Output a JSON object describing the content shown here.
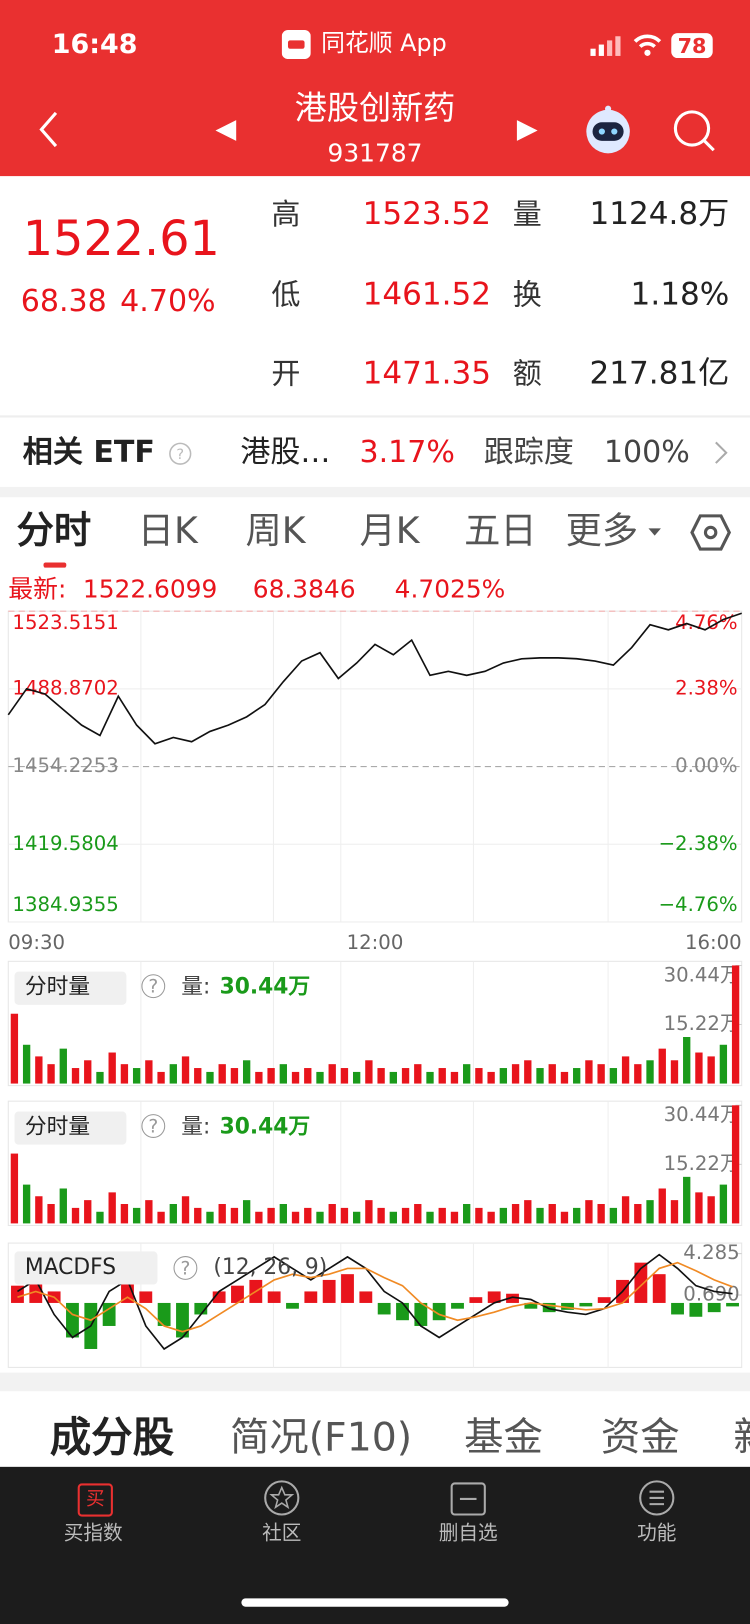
{
  "status_bar": {
    "time": "16:48",
    "app": "同花顺 App",
    "battery": "78"
  },
  "header": {
    "title": "港股创新药",
    "code": "931787"
  },
  "quote": {
    "price": "1522.61",
    "change": "68.38",
    "change_pct": "4.70%",
    "stats": [
      {
        "label": "高",
        "value": "1523.52",
        "label2": "量",
        "value2": "1124.8万"
      },
      {
        "label": "低",
        "value": "1461.52",
        "label2": "换",
        "value2": "1.18%"
      },
      {
        "label": "开",
        "value": "1471.35",
        "label2": "额",
        "value2": "217.81亿"
      }
    ]
  },
  "etf": {
    "label": "相关 ETF",
    "name": "港股…",
    "pct": "3.17%",
    "track_label": "跟踪度",
    "track": "100%"
  },
  "tabs": [
    "分时",
    "日K",
    "周K",
    "月K",
    "五日",
    "更多"
  ],
  "intraday": {
    "type": "line",
    "latest_label": "最新:",
    "latest": "1522.6099",
    "latest_change": "68.3846",
    "latest_pct": "4.7025%",
    "color": "#111111",
    "values": [
      1477.3,
      1488.9,
      1486.6,
      1479.6,
      1472.7,
      1468.1,
      1485.6,
      1472.7,
      1464.4,
      1467.2,
      1465.3,
      1469.9,
      1472.7,
      1476.4,
      1481.9,
      1492.1,
      1501.3,
      1505.0,
      1493.5,
      1500.4,
      1508.7,
      1504.1,
      1510.6,
      1494.9,
      1496.7,
      1494.9,
      1496.7,
      1500.4,
      1502.3,
      1502.7,
      1502.7,
      1502.3,
      1501.3,
      1499.5,
      1507.3,
      1517.5,
      1515.2,
      1518.0,
      1515.2,
      1519.8,
      1522.6
    ],
    "ylim": [
      1384.9355,
      1523.5151
    ],
    "yticks": [
      1523.5151,
      1488.8702,
      1454.2253,
      1419.5804,
      1384.9355
    ],
    "y2lim": [
      -4.76,
      4.76
    ],
    "y2ticks": [
      {
        "value": 4.76,
        "label": "4.76%"
      },
      {
        "value": 2.38,
        "label": "2.38%"
      },
      {
        "value": 0,
        "label": "0.00%"
      },
      {
        "value": -2.38,
        "label": "−2.38%"
      },
      {
        "value": -4.76,
        "label": "−4.76%"
      }
    ],
    "x_labels": [
      "09:30",
      "12:00",
      "16:00"
    ]
  },
  "volume_panels": [
    {
      "type": "bar",
      "selector": "分时量",
      "qty_label": "量:",
      "qty": "30.44万",
      "values": [
        18,
        10,
        7,
        5,
        9,
        4,
        6,
        3,
        8,
        5,
        4,
        6,
        3,
        5,
        7,
        4,
        3,
        5,
        4,
        6,
        3,
        4,
        5,
        3,
        4,
        3,
        5,
        4,
        3,
        6,
        4,
        3,
        4,
        5,
        3,
        4,
        3,
        5,
        4,
        3,
        4,
        5,
        6,
        4,
        5,
        3,
        4,
        6,
        5,
        4,
        7,
        5,
        6,
        9,
        6,
        12,
        8,
        7,
        10,
        30.44
      ],
      "ylim": [
        0,
        30.44
      ],
      "yticks": [
        {
          "value": 30.44,
          "label": "30.44万"
        },
        {
          "value": 15.22,
          "label": "15.22万"
        }
      ]
    },
    {
      "type": "bar",
      "selector": "分时量",
      "qty_label": "量:",
      "qty": "30.44万",
      "values": [
        18,
        10,
        7,
        5,
        9,
        4,
        6,
        3,
        8,
        5,
        4,
        6,
        3,
        5,
        7,
        4,
        3,
        5,
        4,
        6,
        3,
        4,
        5,
        3,
        4,
        3,
        5,
        4,
        3,
        6,
        4,
        3,
        4,
        5,
        3,
        4,
        3,
        5,
        4,
        3,
        4,
        5,
        6,
        4,
        5,
        3,
        4,
        6,
        5,
        4,
        7,
        5,
        6,
        9,
        6,
        12,
        8,
        7,
        10,
        30.44
      ],
      "ylim": [
        0,
        30.44
      ],
      "yticks": [
        {
          "value": 30.44,
          "label": "30.44万"
        },
        {
          "value": 15.22,
          "label": "15.22万"
        }
      ]
    }
  ],
  "macd": {
    "type": "macd",
    "selector": "MACDFS",
    "params": "(12, 26, 9)",
    "ylim": [
      -5.6,
      5.2
    ],
    "yticks": [
      4.285,
      {
        "value": 0.69,
        "label": "0.690"
      }
    ],
    "histogram": [
      1.5,
      2.5,
      1,
      -3,
      -4,
      -2,
      3,
      1,
      -2,
      -3,
      -1,
      1,
      1.5,
      2,
      1,
      -0.5,
      1,
      2,
      2.5,
      1,
      -1,
      -1.5,
      -2,
      -1.5,
      -0.5,
      0.5,
      1,
      0.8,
      -0.5,
      -0.8,
      -0.6,
      -0.3,
      0.5,
      2,
      3.5,
      2.5,
      -1,
      -1.2,
      -0.8,
      -0.3
    ],
    "lines": [
      {
        "color": "#111111",
        "values": [
          1,
          2,
          -1,
          -3,
          -2,
          1,
          2,
          -2,
          -4,
          -3,
          -1,
          1,
          2,
          3,
          4,
          3,
          2,
          3,
          4,
          3,
          1,
          0,
          -2,
          -3,
          -2,
          -1,
          0,
          0.5,
          0.3,
          -0.5,
          -0.8,
          -1,
          -0.5,
          1,
          3,
          4.2,
          3,
          1.5,
          1,
          0.8
        ]
      },
      {
        "color": "#f08a24",
        "values": [
          0.5,
          1,
          0.5,
          -1,
          -1.5,
          -0.5,
          0.5,
          -0.5,
          -2,
          -2.5,
          -2,
          -1,
          0,
          1,
          2,
          2.5,
          2.2,
          2.5,
          3,
          3,
          2.2,
          1.5,
          0,
          -1,
          -1.5,
          -1.2,
          -0.8,
          -0.3,
          0,
          -0.2,
          -0.4,
          -0.6,
          -0.5,
          0,
          1.5,
          3,
          3.5,
          2.8,
          2,
          1.4
        ]
      }
    ]
  },
  "bottom_tabs": [
    "成分股",
    "简况(F10)",
    "基金",
    "资金",
    "新"
  ],
  "nav": {
    "buy_icon": "买",
    "items": [
      "买指数",
      "社区",
      "删自选",
      "功能"
    ]
  }
}
